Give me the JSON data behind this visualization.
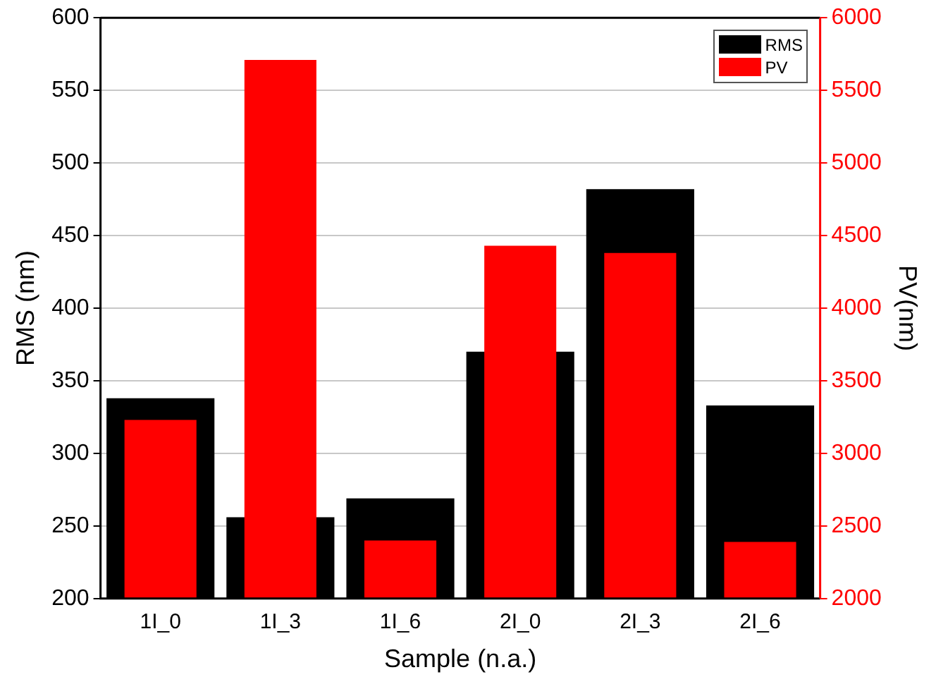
{
  "chart_data": {
    "type": "bar",
    "xlabel": "Sample (n.a.)",
    "ylabel": "RMS (nm)",
    "y2label": "PV(nm)",
    "categories": [
      "1I_0",
      "1I_3",
      "1I_6",
      "2I_0",
      "2I_3",
      "2I_6"
    ],
    "series": [
      {
        "name": "RMS",
        "color": "#000000",
        "values": [
          338,
          256,
          269,
          370,
          482,
          333
        ]
      },
      {
        "name": "PV",
        "color": "#ff0000",
        "axis": "y2",
        "values": [
          3230,
          5710,
          2400,
          4430,
          4380,
          2390
        ]
      }
    ],
    "ylim": [
      200,
      600
    ],
    "yticks": [
      200,
      250,
      300,
      350,
      400,
      450,
      500,
      550,
      600
    ],
    "y2lim": [
      2000,
      6000
    ],
    "y2ticks": [
      2000,
      2500,
      3000,
      3500,
      4000,
      4500,
      5000,
      5500,
      6000
    ],
    "grid": "y",
    "legend": "top right"
  }
}
